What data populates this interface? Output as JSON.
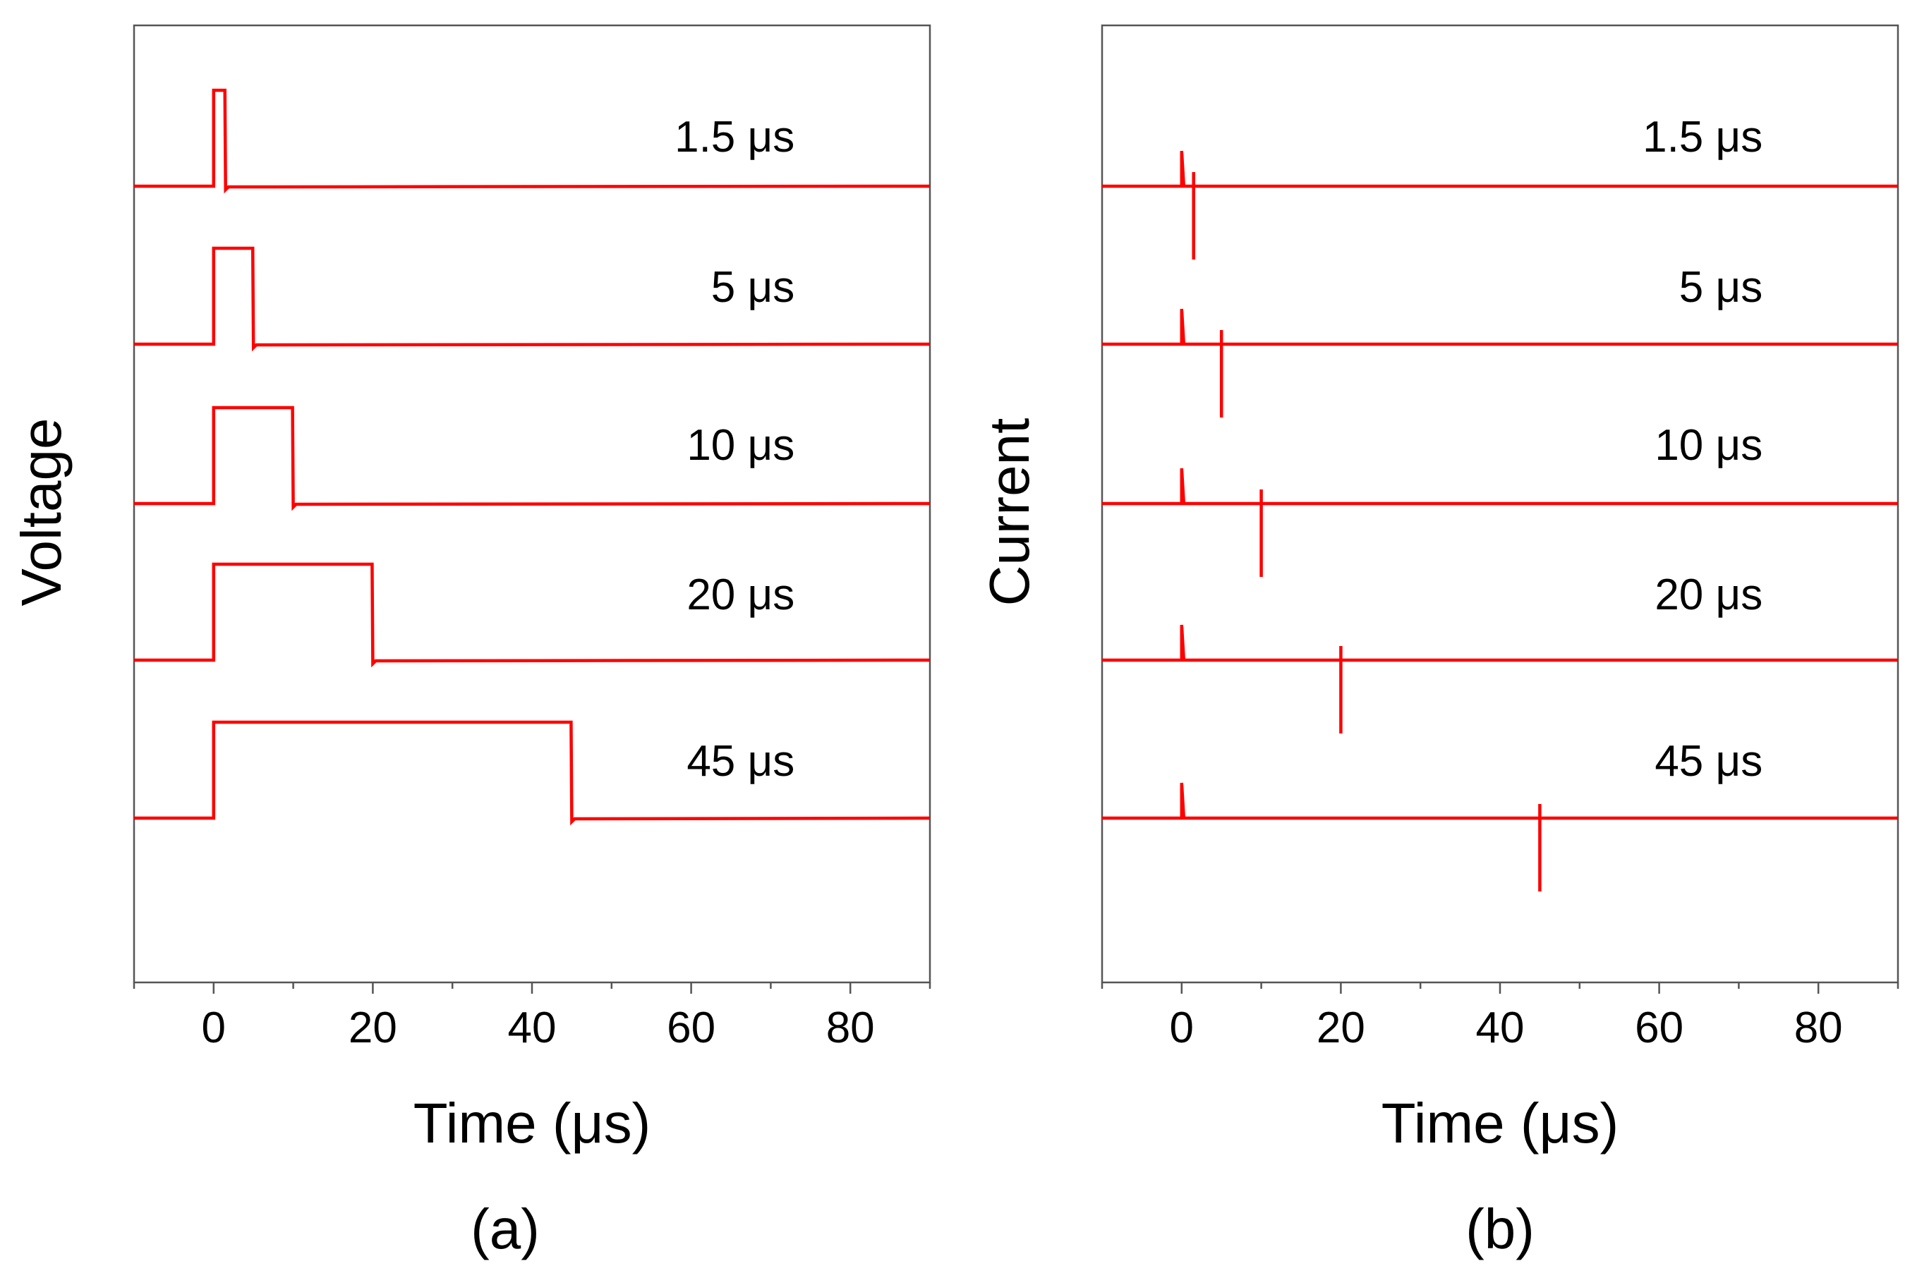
{
  "chart_data": [
    {
      "type": "line",
      "panel_label": "(a)",
      "xlabel": "Time (μs)",
      "ylabel": "Voltage",
      "xlim": [
        -10,
        90
      ],
      "x_ticks": [
        "0",
        "20",
        "40",
        "60",
        "80"
      ],
      "trace_color": "#ff0000",
      "series": [
        {
          "name": "1.5 μs",
          "pulse_width_us": 1.5
        },
        {
          "name": "5 μs",
          "pulse_width_us": 5
        },
        {
          "name": "10 μs",
          "pulse_width_us": 10
        },
        {
          "name": "20 μs",
          "pulse_width_us": 20
        },
        {
          "name": "45 μs",
          "pulse_width_us": 45
        }
      ]
    },
    {
      "type": "line",
      "panel_label": "(b)",
      "xlabel": "Time (μs)",
      "ylabel": "Current",
      "xlim": [
        -10,
        90
      ],
      "x_ticks": [
        "0",
        "20",
        "40",
        "60",
        "80"
      ],
      "trace_color": "#ff0000",
      "series": [
        {
          "name": "1.5 μs",
          "pulse_width_us": 1.5
        },
        {
          "name": "5 μs",
          "pulse_width_us": 5
        },
        {
          "name": "10 μs",
          "pulse_width_us": 10
        },
        {
          "name": "20 μs",
          "pulse_width_us": 20
        },
        {
          "name": "45 μs",
          "pulse_width_us": 45
        }
      ]
    }
  ]
}
